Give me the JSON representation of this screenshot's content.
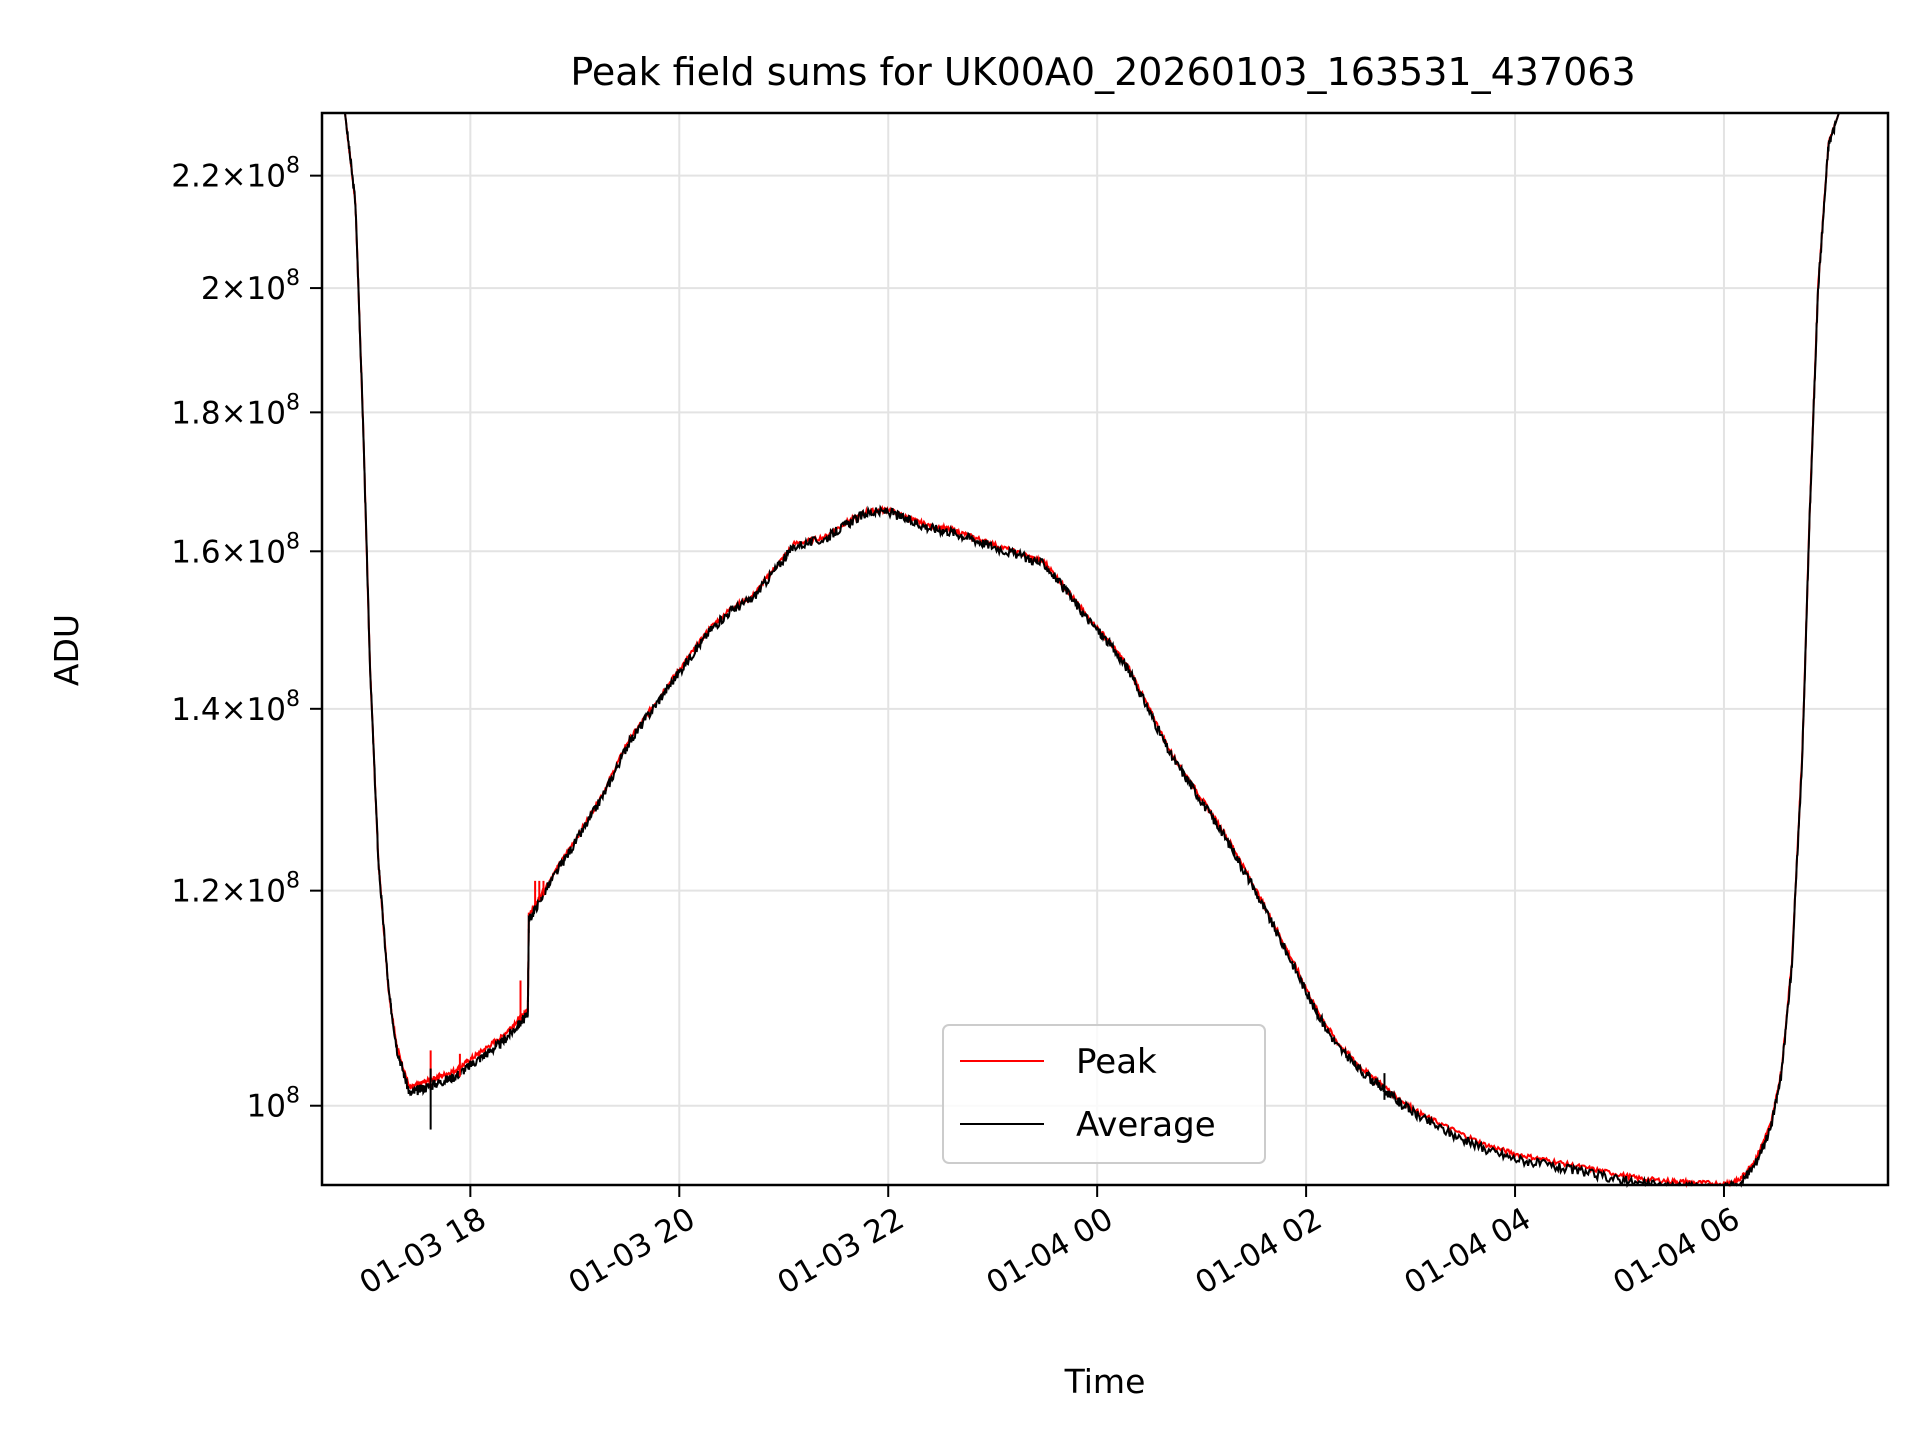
{
  "chart_data": {
    "type": "line",
    "title": "Peak field sums for UK00A0_20260103_163531_437063",
    "xlabel": "Time",
    "ylabel": "ADU",
    "xlim_hours": [
      16.58,
      31.57
    ],
    "ylim": [
      93500000,
      232000000
    ],
    "y_scale": "log",
    "grid": true,
    "legend_position": "lower center",
    "x_ticks": [
      {
        "value": 18,
        "label": "01-03 18"
      },
      {
        "value": 20,
        "label": "01-03 20"
      },
      {
        "value": 22,
        "label": "01-03 22"
      },
      {
        "value": 24,
        "label": "01-04 00"
      },
      {
        "value": 26,
        "label": "01-04 02"
      },
      {
        "value": 28,
        "label": "01-04 04"
      },
      {
        "value": 30,
        "label": "01-04 06"
      }
    ],
    "y_ticks": [
      {
        "value": 100000000,
        "mantissa": "",
        "exponent": "8"
      },
      {
        "value": 120000000,
        "mantissa": "1.2",
        "exponent": "8"
      },
      {
        "value": 140000000,
        "mantissa": "1.4",
        "exponent": "8"
      },
      {
        "value": 160000000,
        "mantissa": "1.6",
        "exponent": "8"
      },
      {
        "value": 180000000,
        "mantissa": "1.8",
        "exponent": "8"
      },
      {
        "value": 200000000,
        "mantissa": "2",
        "exponent": "8"
      },
      {
        "value": 220000000,
        "mantissa": "2.2",
        "exponent": "8"
      }
    ],
    "series": [
      {
        "name": "Peak",
        "color": "#ff0000",
        "points": [
          [
            16.58,
            232000000
          ],
          [
            16.8,
            232000000
          ],
          [
            16.9,
            215000000
          ],
          [
            16.97,
            180000000
          ],
          [
            17.04,
            145000000
          ],
          [
            17.12,
            123000000
          ],
          [
            17.22,
            110000000
          ],
          [
            17.3,
            105000000
          ],
          [
            17.42,
            101500000
          ],
          [
            17.55,
            102000000
          ],
          [
            17.7,
            102500000
          ],
          [
            17.85,
            103000000
          ],
          [
            18.0,
            104000000
          ],
          [
            18.15,
            105000000
          ],
          [
            18.3,
            106000000
          ],
          [
            18.45,
            107500000
          ],
          [
            18.55,
            108500000
          ],
          [
            18.56,
            117500000
          ],
          [
            18.7,
            120000000
          ],
          [
            18.9,
            123500000
          ],
          [
            19.1,
            127000000
          ],
          [
            19.3,
            131000000
          ],
          [
            19.5,
            136000000
          ],
          [
            19.7,
            139500000
          ],
          [
            19.9,
            143000000
          ],
          [
            20.1,
            146500000
          ],
          [
            20.3,
            150000000
          ],
          [
            20.5,
            152500000
          ],
          [
            20.7,
            154000000
          ],
          [
            20.9,
            157500000
          ],
          [
            21.1,
            161000000
          ],
          [
            21.4,
            162000000
          ],
          [
            21.6,
            164000000
          ],
          [
            21.8,
            165500000
          ],
          [
            22.0,
            165800000
          ],
          [
            22.2,
            164500000
          ],
          [
            22.4,
            163500000
          ],
          [
            22.6,
            163000000
          ],
          [
            22.8,
            162000000
          ],
          [
            23.0,
            161000000
          ],
          [
            23.3,
            159500000
          ],
          [
            23.5,
            158500000
          ],
          [
            23.7,
            155000000
          ],
          [
            23.9,
            151500000
          ],
          [
            24.1,
            148500000
          ],
          [
            24.3,
            145000000
          ],
          [
            24.5,
            140000000
          ],
          [
            24.7,
            135000000
          ],
          [
            24.9,
            131500000
          ],
          [
            25.1,
            128000000
          ],
          [
            25.3,
            124500000
          ],
          [
            25.5,
            120500000
          ],
          [
            25.7,
            116500000
          ],
          [
            25.9,
            112500000
          ],
          [
            26.1,
            108500000
          ],
          [
            26.3,
            105500000
          ],
          [
            26.5,
            103500000
          ],
          [
            26.7,
            102000000
          ],
          [
            26.9,
            100500000
          ],
          [
            27.1,
            99300000
          ],
          [
            27.4,
            98000000
          ],
          [
            27.7,
            96800000
          ],
          [
            28.0,
            96000000
          ],
          [
            28.3,
            95500000
          ],
          [
            28.6,
            95000000
          ],
          [
            28.9,
            94500000
          ],
          [
            29.2,
            94000000
          ],
          [
            29.5,
            93800000
          ],
          [
            29.7,
            93700000
          ],
          [
            30.0,
            93600000
          ],
          [
            30.15,
            93900000
          ],
          [
            30.3,
            95500000
          ],
          [
            30.45,
            98500000
          ],
          [
            30.55,
            103000000
          ],
          [
            30.65,
            113000000
          ],
          [
            30.75,
            135000000
          ],
          [
            30.82,
            165000000
          ],
          [
            30.9,
            200000000
          ],
          [
            31.0,
            226000000
          ],
          [
            31.1,
            232000000
          ],
          [
            31.57,
            232000000
          ]
        ]
      },
      {
        "name": "Average",
        "color": "#000000",
        "points": [
          [
            16.58,
            232000000
          ],
          [
            16.8,
            232000000
          ],
          [
            16.9,
            215000000
          ],
          [
            16.97,
            180000000
          ],
          [
            17.04,
            145000000
          ],
          [
            17.12,
            123000000
          ],
          [
            17.22,
            110000000
          ],
          [
            17.3,
            104800000
          ],
          [
            17.42,
            101000000
          ],
          [
            17.55,
            101500000
          ],
          [
            17.7,
            102000000
          ],
          [
            17.85,
            102500000
          ],
          [
            18.0,
            103500000
          ],
          [
            18.15,
            104500000
          ],
          [
            18.3,
            105500000
          ],
          [
            18.45,
            107000000
          ],
          [
            18.55,
            108000000
          ],
          [
            18.56,
            117000000
          ],
          [
            18.7,
            119700000
          ],
          [
            18.9,
            123200000
          ],
          [
            19.1,
            126700000
          ],
          [
            19.3,
            130700000
          ],
          [
            19.5,
            135700000
          ],
          [
            19.7,
            139200000
          ],
          [
            19.9,
            142700000
          ],
          [
            20.1,
            146200000
          ],
          [
            20.3,
            149700000
          ],
          [
            20.5,
            152200000
          ],
          [
            20.7,
            153700000
          ],
          [
            20.9,
            157200000
          ],
          [
            21.1,
            160700000
          ],
          [
            21.4,
            161700000
          ],
          [
            21.6,
            163700000
          ],
          [
            21.8,
            165300000
          ],
          [
            22.0,
            165500000
          ],
          [
            22.2,
            164200000
          ],
          [
            22.4,
            163200000
          ],
          [
            22.6,
            162700000
          ],
          [
            22.8,
            161700000
          ],
          [
            23.0,
            160700000
          ],
          [
            23.3,
            159200000
          ],
          [
            23.5,
            158200000
          ],
          [
            23.7,
            154700000
          ],
          [
            23.9,
            151200000
          ],
          [
            24.1,
            148200000
          ],
          [
            24.3,
            144700000
          ],
          [
            24.5,
            139700000
          ],
          [
            24.7,
            134700000
          ],
          [
            24.9,
            131200000
          ],
          [
            25.1,
            127700000
          ],
          [
            25.3,
            124200000
          ],
          [
            25.5,
            120200000
          ],
          [
            25.7,
            116200000
          ],
          [
            25.9,
            112200000
          ],
          [
            26.1,
            108200000
          ],
          [
            26.3,
            105200000
          ],
          [
            26.5,
            103200000
          ],
          [
            26.7,
            101700000
          ],
          [
            26.9,
            100200000
          ],
          [
            27.1,
            99000000
          ],
          [
            27.4,
            97600000
          ],
          [
            27.7,
            96400000
          ],
          [
            28.0,
            95600000
          ],
          [
            28.3,
            95100000
          ],
          [
            28.6,
            94600000
          ],
          [
            28.9,
            94100000
          ],
          [
            29.2,
            93600000
          ],
          [
            29.5,
            93400000
          ],
          [
            29.7,
            93300000
          ],
          [
            30.0,
            93200000
          ],
          [
            30.15,
            93500000
          ],
          [
            30.3,
            95200000
          ],
          [
            30.45,
            98200000
          ],
          [
            30.55,
            102700000
          ],
          [
            30.65,
            112700000
          ],
          [
            30.75,
            134700000
          ],
          [
            30.82,
            164700000
          ],
          [
            30.9,
            199700000
          ],
          [
            31.0,
            225800000
          ],
          [
            31.1,
            232000000
          ],
          [
            31.57,
            232000000
          ]
        ]
      }
    ],
    "peak_spikes": [
      {
        "x": 17.62,
        "low": 101500000,
        "high": 104800000
      },
      {
        "x": 17.9,
        "low": 102500000,
        "high": 104500000
      },
      {
        "x": 18.48,
        "low": 107500000,
        "high": 111200000
      },
      {
        "x": 18.62,
        "low": 118500000,
        "high": 121000000
      },
      {
        "x": 18.66,
        "low": 119000000,
        "high": 121000000
      },
      {
        "x": 18.7,
        "low": 119500000,
        "high": 121000000
      }
    ],
    "average_spikes": [
      {
        "x": 17.62,
        "low": 98000000,
        "high": 103200000
      },
      {
        "x": 26.75,
        "low": 100500000,
        "high": 102800000
      }
    ]
  }
}
